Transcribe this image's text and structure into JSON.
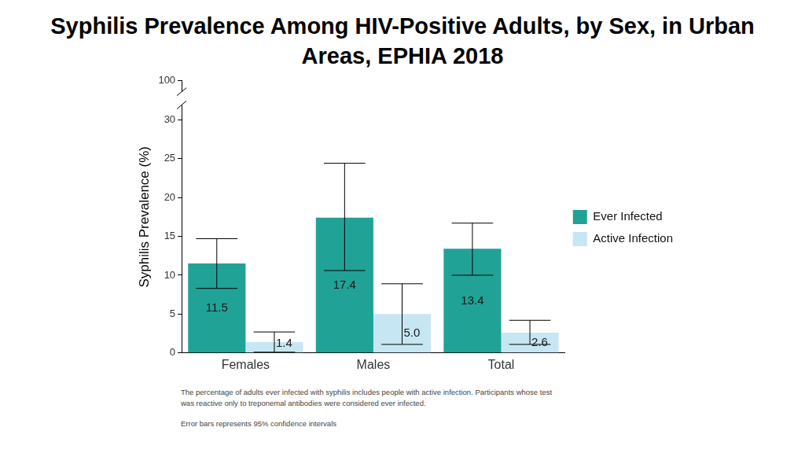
{
  "chart_data": {
    "type": "bar",
    "title": "Syphilis Prevalence Among HIV-Positive Adults, by Sex, in Urban Areas, EPHIA 2018",
    "y_label": "Syphilis Prevalence (%)",
    "categories": [
      "Females",
      "Males",
      "Total"
    ],
    "series": [
      {
        "name": "Ever Infected",
        "color": "#21a297",
        "values": [
          11.5,
          17.4,
          13.4
        ],
        "value_labels": [
          "11.5",
          "17.4",
          "13.4"
        ],
        "ci_low": [
          8.3,
          10.6,
          10.0
        ],
        "ci_high": [
          14.7,
          24.4,
          16.7
        ]
      },
      {
        "name": "Active Infection",
        "color": "#c6e6f3",
        "values": [
          1.4,
          5.0,
          2.6
        ],
        "value_labels": [
          "1.4",
          "5.0",
          "2.6"
        ],
        "ci_low": [
          0.1,
          1.1,
          1.1
        ],
        "ci_high": [
          2.7,
          8.9,
          4.2
        ]
      }
    ],
    "ylim": [
      0,
      100
    ],
    "yticks": [
      0,
      5,
      10,
      15,
      20,
      25,
      30,
      100
    ],
    "grid": false,
    "legend": "right",
    "data_labels": true,
    "annotations": [
      "The percentage of adults ever infected with syphilis includes people with active infection. Participants whose test was reactive only to treponemal antibodies were considered ever infected.",
      "Error bars represents 95% confidence intervals"
    ]
  }
}
